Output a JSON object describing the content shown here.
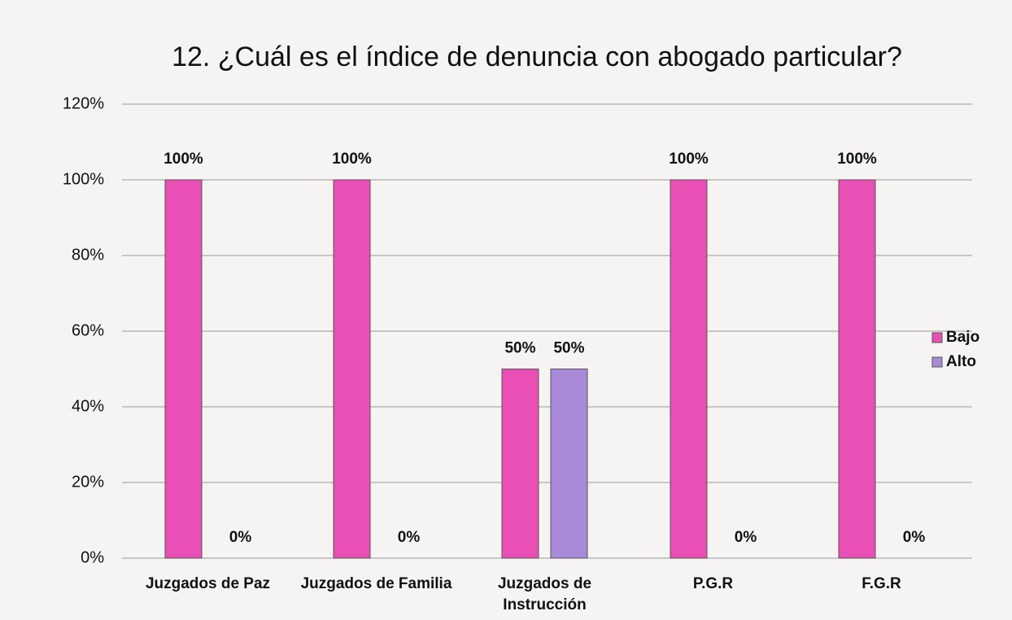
{
  "chart_data": {
    "type": "bar",
    "title": "12. ¿Cuál es el índice de denuncia con abogado particular?",
    "categories": [
      "Juzgados de Paz",
      "Juzgados de Familia",
      "Juzgados de Instrucción",
      "P.G.R",
      "F.G.R"
    ],
    "series": [
      {
        "name": "Bajo",
        "color": "#e94fb4",
        "values": [
          100,
          100,
          50,
          100,
          100
        ],
        "value_labels": [
          "100%",
          "100%",
          "50%",
          "100%",
          "100%"
        ]
      },
      {
        "name": "Alto",
        "color": "#a88ad8",
        "values": [
          0,
          0,
          50,
          0,
          0
        ],
        "value_labels": [
          "0%",
          "0%",
          "50%",
          "0%",
          "0%"
        ]
      }
    ],
    "ylim": [
      0,
      120
    ],
    "yticks": [
      {
        "value": 0,
        "label": "0%"
      },
      {
        "value": 20,
        "label": "20%"
      },
      {
        "value": 40,
        "label": "40%"
      },
      {
        "value": 60,
        "label": "60%"
      },
      {
        "value": 80,
        "label": "80%"
      },
      {
        "value": 100,
        "label": "100%"
      },
      {
        "value": 120,
        "label": "120%"
      }
    ],
    "grid": true,
    "legend": "right"
  }
}
